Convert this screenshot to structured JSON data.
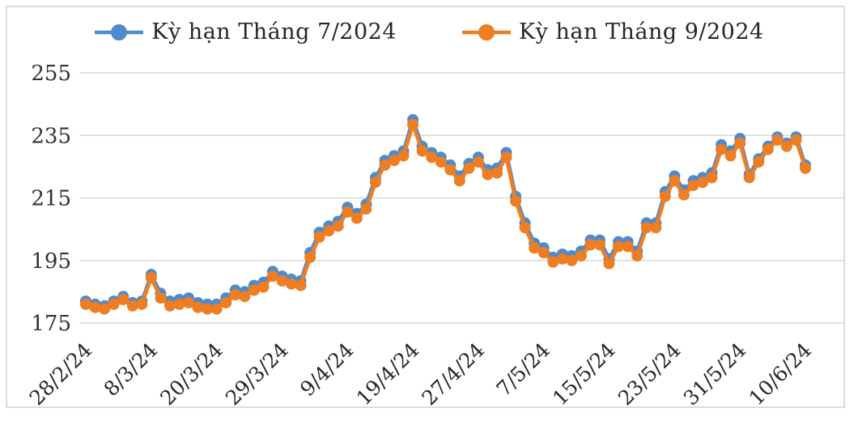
{
  "chart_data": {
    "type": "line",
    "title": "",
    "xlabel": "",
    "ylabel": "",
    "ylim": [
      175,
      255
    ],
    "y_ticks": [
      255,
      235,
      215,
      195,
      175
    ],
    "grid": true,
    "legend_position": "top",
    "x_labels": [
      "28/2/24",
      "8/3/24",
      "20/3/24",
      "29/3/24",
      "9/4/24",
      "19/4/24",
      "27/4/24",
      "7/5/24",
      "15/5/24",
      "23/5/24",
      "31/5/24",
      "10/6/24"
    ],
    "x_label_interval": 7,
    "series": [
      {
        "name": "Kỳ hạn Tháng 7/2024",
        "color": "#4d8bce",
        "marker": "circle",
        "values": [
          182,
          181,
          180.5,
          182,
          183.5,
          181.5,
          182,
          190.5,
          184.5,
          182,
          182.5,
          183,
          181.5,
          181,
          181,
          183,
          185.5,
          185,
          187,
          188,
          191.5,
          190,
          189,
          188.5,
          197.5,
          204,
          206,
          207.5,
          212,
          210,
          213,
          221.5,
          227,
          228.5,
          230,
          240,
          231.5,
          229.5,
          228,
          225.5,
          222,
          226,
          228,
          224,
          224.5,
          229.5,
          215.5,
          207,
          200.5,
          199,
          196,
          197,
          196.5,
          198,
          201.5,
          201.5,
          195.5,
          201,
          201,
          198,
          207,
          207,
          217,
          222,
          217.5,
          220.5,
          221.5,
          223,
          232,
          230,
          234,
          222.5,
          227.5,
          231.5,
          234.5,
          232.5,
          234.5,
          225.5
        ]
      },
      {
        "name": "Kỳ hạn Tháng 9/2024",
        "color": "#ef7d22",
        "marker": "circle",
        "values": [
          181,
          180,
          179.5,
          181,
          182.5,
          180.5,
          181,
          189.5,
          183,
          180.5,
          181,
          181.5,
          180,
          179.5,
          179.5,
          181.5,
          184,
          183.5,
          185.5,
          186.5,
          190,
          188.5,
          187.5,
          187,
          196,
          202.5,
          204.5,
          206,
          210.5,
          208.5,
          211.5,
          220,
          225.5,
          227,
          228.5,
          238.5,
          230,
          228,
          226.5,
          224,
          220.5,
          224.5,
          226.5,
          222.5,
          223,
          228,
          214,
          205.5,
          199,
          197.5,
          194.5,
          195.5,
          195,
          196.5,
          200,
          200,
          194,
          199.5,
          199.5,
          196.5,
          205.5,
          205.5,
          215.5,
          220.5,
          216,
          219,
          220,
          221.5,
          230.5,
          228.5,
          232.5,
          221.5,
          226.5,
          230.5,
          233.5,
          231.5,
          233.5,
          224.5
        ]
      }
    ]
  },
  "styles": {
    "grid_color": "#d9d9d9",
    "tick_label_color": "#333333",
    "x_label_color": "#262626",
    "frame_border_color": "#d7dde8",
    "background": "#ffffff"
  }
}
